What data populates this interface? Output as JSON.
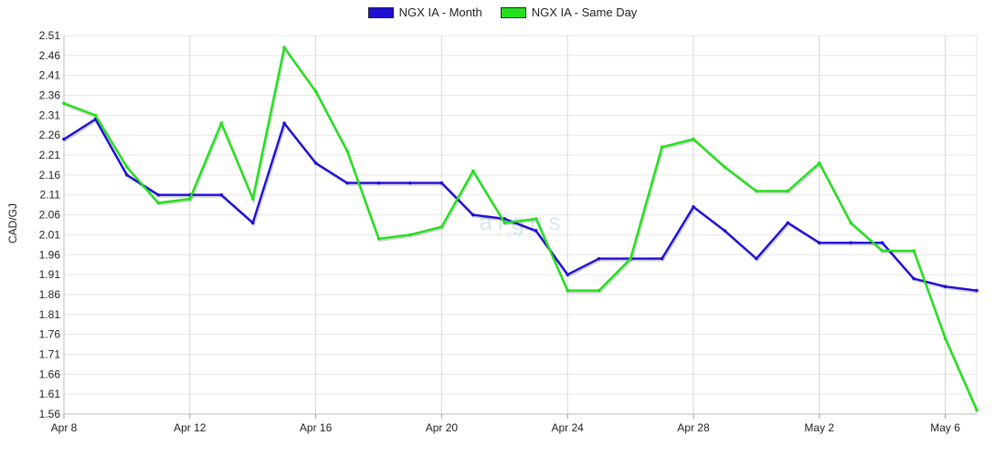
{
  "legend": {
    "month_label": "NGX IA - Month",
    "same_day_label": "NGX IA - Same Day"
  },
  "watermark": {
    "main": "argus",
    "sub": "POWER"
  },
  "chart_data": {
    "type": "line",
    "ylabel": "CAD/GJ",
    "ylim": [
      1.56,
      2.51
    ],
    "yticks": [
      "2.51",
      "2.46",
      "2.41",
      "2.36",
      "2.31",
      "2.26",
      "2.21",
      "2.16",
      "2.11",
      "2.06",
      "2.01",
      "1.96",
      "1.91",
      "1.86",
      "1.81",
      "1.76",
      "1.71",
      "1.66",
      "1.61",
      "1.56"
    ],
    "x": [
      "Apr 8",
      "Apr 9",
      "Apr 10",
      "Apr 11",
      "Apr 12",
      "Apr 13",
      "Apr 14",
      "Apr 15",
      "Apr 16",
      "Apr 17",
      "Apr 18",
      "Apr 19",
      "Apr 20",
      "Apr 21",
      "Apr 22",
      "Apr 23",
      "Apr 24",
      "Apr 25",
      "Apr 26",
      "Apr 27",
      "Apr 28",
      "Apr 29",
      "Apr 30",
      "May 1",
      "May 2",
      "May 3",
      "May 4",
      "May 5",
      "May 6",
      "May 7"
    ],
    "xtick_labels": [
      {
        "label": "Apr 8",
        "index": 0
      },
      {
        "label": "Apr 12",
        "index": 4
      },
      {
        "label": "Apr 16",
        "index": 8
      },
      {
        "label": "Apr 20",
        "index": 12
      },
      {
        "label": "Apr 24",
        "index": 16
      },
      {
        "label": "Apr 28",
        "index": 20
      },
      {
        "label": "May 2",
        "index": 24
      },
      {
        "label": "May 6",
        "index": 28
      }
    ],
    "grid": true,
    "legend_position": "top-center",
    "series": [
      {
        "name": "NGX IA - Month",
        "color": "#1f0fd6",
        "values": [
          2.25,
          2.3,
          2.16,
          2.11,
          2.11,
          2.11,
          2.04,
          2.29,
          2.19,
          2.14,
          2.14,
          2.14,
          2.14,
          2.06,
          2.05,
          2.02,
          1.91,
          1.95,
          1.95,
          1.95,
          2.08,
          2.02,
          1.95,
          2.04,
          1.99,
          1.99,
          1.99,
          1.9,
          1.88,
          1.87
        ]
      },
      {
        "name": "NGX IA - Same Day",
        "color": "#22e11b",
        "values": [
          2.34,
          2.31,
          2.18,
          2.09,
          2.1,
          2.29,
          2.1,
          2.48,
          2.37,
          2.22,
          2.0,
          2.01,
          2.03,
          2.17,
          2.04,
          2.05,
          1.87,
          1.87,
          1.95,
          2.23,
          2.25,
          2.18,
          2.12,
          2.12,
          2.19,
          2.04,
          1.97,
          1.97,
          1.75,
          1.57
        ]
      }
    ]
  }
}
